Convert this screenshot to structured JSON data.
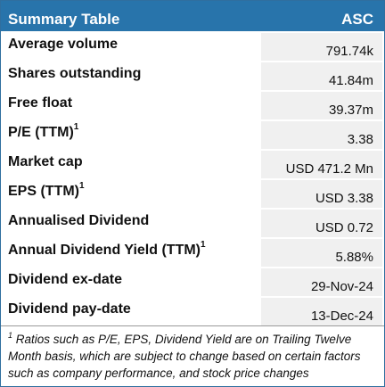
{
  "header": {
    "title": "Summary Table",
    "ticker": "ASC"
  },
  "rows": [
    {
      "label": "Average volume",
      "sup": "",
      "value": "791.74k"
    },
    {
      "label": "Shares outstanding",
      "sup": "",
      "value": "41.84m"
    },
    {
      "label": "Free float",
      "sup": "",
      "value": "39.37m"
    },
    {
      "label": "P/E (TTM)",
      "sup": "1",
      "value": "3.38"
    },
    {
      "label": "Market cap",
      "sup": "",
      "value": "USD 471.2 Mn"
    },
    {
      "label": "EPS (TTM)",
      "sup": "1",
      "value": "USD 3.38"
    },
    {
      "label": "Annualised Dividend",
      "sup": "",
      "value": "USD 0.72"
    },
    {
      "label": "Annual Dividend Yield (TTM)",
      "sup": "1",
      "value": "5.88%"
    },
    {
      "label": "Dividend ex-date",
      "sup": "",
      "value": "29-Nov-24"
    },
    {
      "label": "Dividend pay-date",
      "sup": "",
      "value": "13-Dec-24"
    }
  ],
  "footnote": {
    "marker": "1",
    "text": " Ratios such as P/E, EPS, Dividend Yield are on Trailing Twelve Month basis, which are subject to change based on certain factors such as company performance, and stock price changes"
  },
  "colors": {
    "header_bg": "#2874ab",
    "value_bg": "#f0f0f0"
  }
}
